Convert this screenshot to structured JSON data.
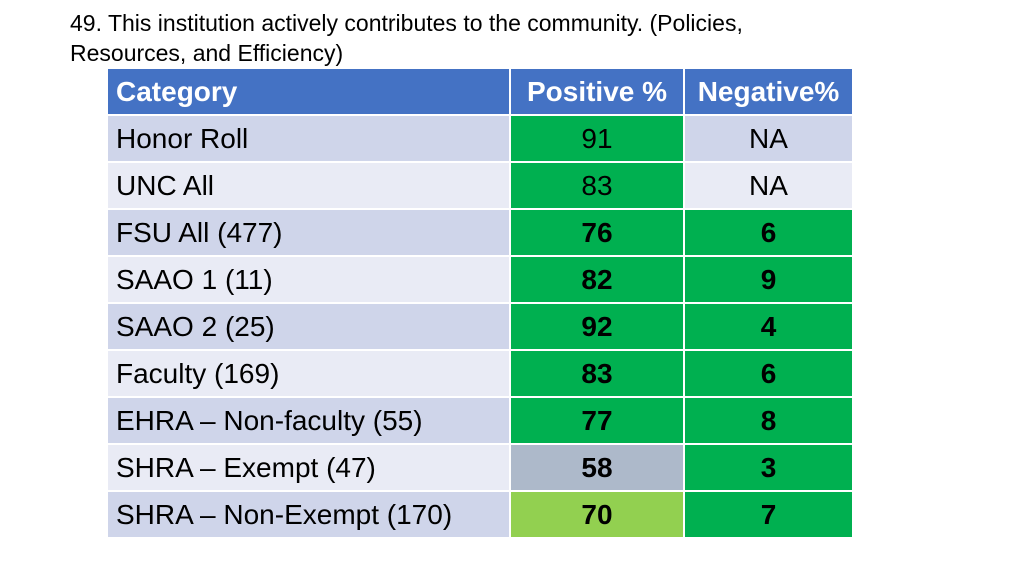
{
  "title": {
    "line1": "49. This institution actively contributes to the community. (Policies,",
    "line2": "Resources, and Efficiency)"
  },
  "table": {
    "headers": [
      "Category",
      "Positive %",
      "Negative%"
    ],
    "rows": [
      {
        "category": "Honor Roll",
        "positive": "91",
        "negative": "NA"
      },
      {
        "category": "UNC All",
        "positive": "83",
        "negative": "NA"
      },
      {
        "category": "FSU All (477)",
        "positive": "76",
        "negative": "6"
      },
      {
        "category": "SAAO 1 (11)",
        "positive": "82",
        "negative": "9"
      },
      {
        "category": "SAAO 2 (25)",
        "positive": "92",
        "negative": "4"
      },
      {
        "category": "Faculty (169)",
        "positive": "83",
        "negative": "6"
      },
      {
        "category": "EHRA – Non-faculty (55)",
        "positive": "77",
        "negative": "8"
      },
      {
        "category": "SHRA – Exempt (47)",
        "positive": "58",
        "negative": "3"
      },
      {
        "category": "SHRA – Non-Exempt (170)",
        "positive": "70",
        "negative": "7"
      }
    ]
  },
  "colors": {
    "header": "#4472c4",
    "band_dark": "#cfd5ea",
    "band_light": "#e9ebf5",
    "green": "#00b050",
    "light_green": "#92d050",
    "grey": "#adb9ca"
  }
}
